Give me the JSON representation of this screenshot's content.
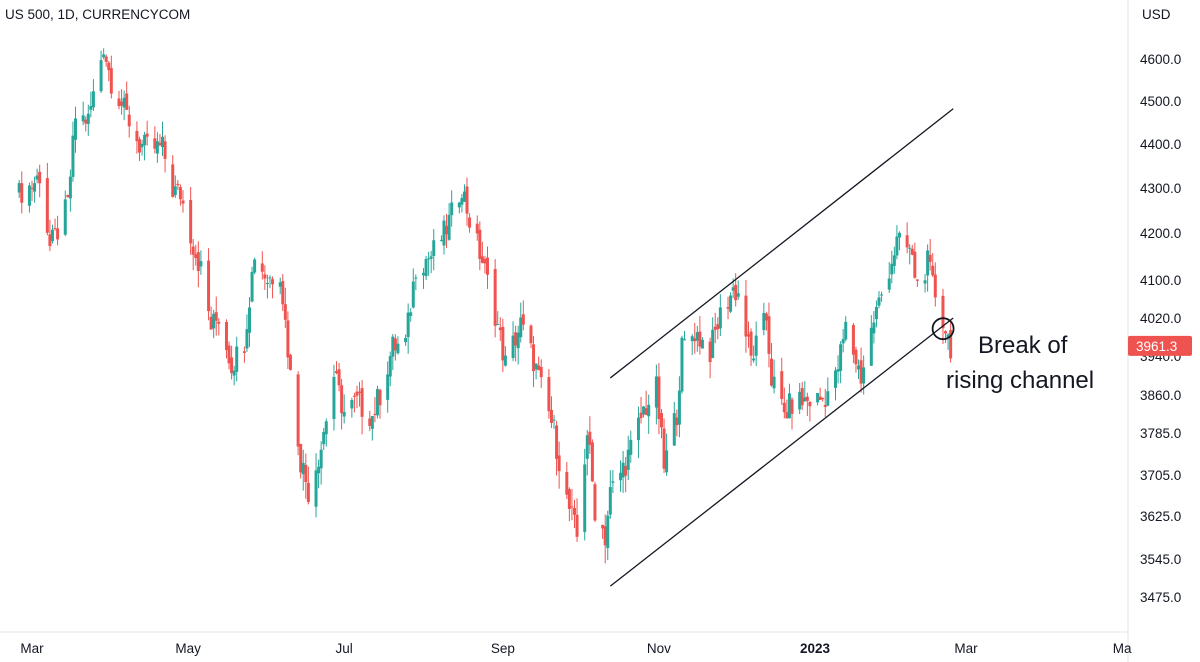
{
  "chart_data": {
    "type": "candlestick",
    "title": "US 500, 1D, CURRENCYCOM",
    "currency": "USD",
    "last_price": "3961.3",
    "colors": {
      "up": "#26a69a",
      "down": "#ef5350",
      "badge": "#ef5350",
      "line": "#131722",
      "axis_text": "#131722"
    },
    "y_ticks": [
      "4600.0",
      "4500.0",
      "4400.0",
      "4300.0",
      "4200.0",
      "4100.0",
      "4020.0",
      "3940.0",
      "3860.0",
      "3785.0",
      "3705.0",
      "3625.0",
      "3545.0",
      "3475.0"
    ],
    "x_ticks": [
      {
        "label": "Mar",
        "date": "2022-03-01",
        "bold": false
      },
      {
        "label": "May",
        "date": "2022-05-01",
        "bold": false
      },
      {
        "label": "Jul",
        "date": "2022-07-01",
        "bold": false
      },
      {
        "label": "Sep",
        "date": "2022-09-01",
        "bold": false
      },
      {
        "label": "Nov",
        "date": "2022-11-01",
        "bold": false
      },
      {
        "label": "2023",
        "date": "2023-01-01",
        "bold": true
      },
      {
        "label": "Mar",
        "date": "2023-03-01",
        "bold": false
      },
      {
        "label": "Ma",
        "date": "2023-05-01",
        "bold": false
      }
    ],
    "annotation": {
      "text_line1": "Break of",
      "text_line2": "rising channel",
      "date": "2023-02-22",
      "price": 3968
    },
    "channel": {
      "upper": [
        {
          "date": "2022-10-13",
          "price": 3895
        },
        {
          "date": "2023-02-24",
          "price": 4482
        }
      ],
      "lower": [
        {
          "date": "2022-10-13",
          "price": 3495
        },
        {
          "date": "2023-02-24",
          "price": 4020
        }
      ]
    },
    "closes": [
      [
        "2022-02-24",
        4288
      ],
      [
        "2022-03-01",
        4306
      ],
      [
        "2022-03-04",
        4329
      ],
      [
        "2022-03-08",
        4170
      ],
      [
        "2022-03-11",
        4204
      ],
      [
        "2022-03-15",
        4262
      ],
      [
        "2022-03-18",
        4463
      ],
      [
        "2022-03-23",
        4456
      ],
      [
        "2022-03-29",
        4631
      ],
      [
        "2022-04-01",
        4545
      ],
      [
        "2022-04-06",
        4481
      ],
      [
        "2022-04-12",
        4397
      ],
      [
        "2022-04-18",
        4391
      ],
      [
        "2022-04-21",
        4393
      ],
      [
        "2022-04-25",
        4296
      ],
      [
        "2022-04-28",
        4287
      ],
      [
        "2022-05-03",
        4175
      ],
      [
        "2022-05-06",
        4123
      ],
      [
        "2022-05-10",
        4001
      ],
      [
        "2022-05-13",
        4023
      ],
      [
        "2022-05-18",
        3923
      ],
      [
        "2022-05-23",
        3973
      ],
      [
        "2022-05-27",
        4158
      ],
      [
        "2022-06-01",
        4101
      ],
      [
        "2022-06-06",
        4121
      ],
      [
        "2022-06-10",
        3901
      ],
      [
        "2022-06-14",
        3735
      ],
      [
        "2022-06-17",
        3675
      ],
      [
        "2022-06-22",
        3760
      ],
      [
        "2022-06-27",
        3900
      ],
      [
        "2022-07-01",
        3825
      ],
      [
        "2022-07-06",
        3845
      ],
      [
        "2022-07-12",
        3819
      ],
      [
        "2022-07-15",
        3863
      ],
      [
        "2022-07-20",
        3959
      ],
      [
        "2022-07-25",
        3966
      ],
      [
        "2022-07-29",
        4130
      ],
      [
        "2022-08-04",
        4152
      ],
      [
        "2022-08-10",
        4210
      ],
      [
        "2022-08-16",
        4305
      ],
      [
        "2022-08-19",
        4228
      ],
      [
        "2022-08-24",
        4140
      ],
      [
        "2022-08-29",
        4030
      ],
      [
        "2022-09-02",
        3924
      ],
      [
        "2022-09-08",
        4006
      ],
      [
        "2022-09-13",
        3932
      ],
      [
        "2022-09-16",
        3873
      ],
      [
        "2022-09-21",
        3789
      ],
      [
        "2022-09-26",
        3655
      ],
      [
        "2022-09-30",
        3585
      ],
      [
        "2022-10-04",
        3790
      ],
      [
        "2022-10-07",
        3640
      ],
      [
        "2022-10-11",
        3588
      ],
      [
        "2022-10-13",
        3669
      ],
      [
        "2022-10-18",
        3719
      ],
      [
        "2022-10-21",
        3752
      ],
      [
        "2022-10-26",
        3830
      ],
      [
        "2022-10-31",
        3872
      ],
      [
        "2022-11-03",
        3719
      ],
      [
        "2022-11-08",
        3828
      ],
      [
        "2022-11-10",
        3956
      ],
      [
        "2022-11-15",
        3991
      ],
      [
        "2022-11-21",
        3950
      ],
      [
        "2022-11-25",
        4026
      ],
      [
        "2022-11-30",
        4080
      ],
      [
        "2022-12-02",
        4071
      ],
      [
        "2022-12-07",
        3933
      ],
      [
        "2022-12-13",
        4019
      ],
      [
        "2022-12-15",
        3895
      ],
      [
        "2022-12-20",
        3821
      ],
      [
        "2022-12-23",
        3844
      ],
      [
        "2022-12-29",
        3849
      ],
      [
        "2023-01-04",
        3852
      ],
      [
        "2023-01-09",
        3892
      ],
      [
        "2023-01-13",
        3999
      ],
      [
        "2023-01-19",
        3898
      ],
      [
        "2023-01-24",
        4016
      ],
      [
        "2023-01-27",
        4070
      ],
      [
        "2023-02-02",
        4179
      ],
      [
        "2023-02-07",
        4164
      ],
      [
        "2023-02-10",
        4090
      ],
      [
        "2023-02-14",
        4136
      ],
      [
        "2023-02-16",
        4090
      ],
      [
        "2023-02-21",
        3997
      ],
      [
        "2023-02-23",
        3961
      ]
    ]
  }
}
